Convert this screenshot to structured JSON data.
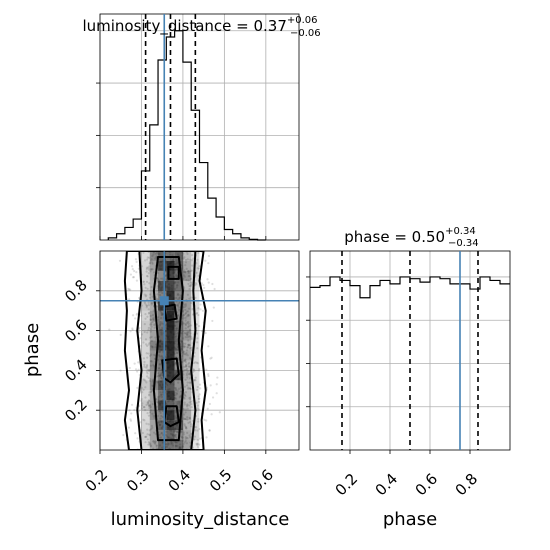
{
  "chart_data": [
    {
      "type": "histogram",
      "panel": "luminosity_distance-marginal",
      "title": {
        "main": "luminosity_distance = 0.37",
        "sup": "+0.06",
        "sub": "−0.06"
      },
      "xlim": [
        0.2,
        0.68
      ],
      "bins": [
        0.22,
        0.24,
        0.26,
        0.28,
        0.3,
        0.32,
        0.34,
        0.36,
        0.38,
        0.4,
        0.42,
        0.44,
        0.46,
        0.48,
        0.5,
        0.52,
        0.54,
        0.56,
        0.58
      ],
      "counts": [
        0.01,
        0.03,
        0.06,
        0.1,
        0.33,
        0.55,
        0.86,
        0.97,
        1.0,
        0.85,
        0.62,
        0.37,
        0.2,
        0.11,
        0.05,
        0.03,
        0.01,
        0.003
      ],
      "quantiles": [
        0.31,
        0.37,
        0.43
      ],
      "truth": 0.355
    },
    {
      "type": "histogram",
      "panel": "phase-marginal",
      "title": {
        "main": "phase = 0.50",
        "sup": "+0.34",
        "sub": "−0.34"
      },
      "xlim": [
        0.0,
        1.0
      ],
      "bins": [
        0.0,
        0.05,
        0.1,
        0.15,
        0.2,
        0.25,
        0.3,
        0.35,
        0.4,
        0.45,
        0.5,
        0.55,
        0.6,
        0.65,
        0.7,
        0.75,
        0.8,
        0.85,
        0.9,
        0.95,
        1.0
      ],
      "counts": [
        0.94,
        0.95,
        1.0,
        0.98,
        0.95,
        0.88,
        0.95,
        0.98,
        0.96,
        1.0,
        0.99,
        0.97,
        1.0,
        0.99,
        0.96,
        0.96,
        0.93,
        1.0,
        0.98,
        0.96
      ],
      "ylim": [
        0,
        1.15
      ],
      "quantiles": [
        0.16,
        0.5,
        0.84
      ],
      "truth": 0.75,
      "xticks": [
        0.2,
        0.4,
        0.6,
        0.8
      ],
      "xlabel": "phase"
    },
    {
      "type": "2d-histogram-contour",
      "panel": "luminosity_distance-vs-phase",
      "xlabel": "luminosity_distance",
      "ylabel": "phase",
      "xlim": [
        0.2,
        0.68
      ],
      "ylim": [
        0.0,
        1.0
      ],
      "xticks": [
        0.2,
        0.3,
        0.4,
        0.5,
        0.6
      ],
      "yticks": [
        0.2,
        0.4,
        0.6,
        0.8
      ],
      "truth": {
        "x": 0.355,
        "y": 0.75
      },
      "contour_levels": [
        [
          [
            0.27,
            0.0
          ],
          [
            0.26,
            0.15
          ],
          [
            0.27,
            0.3
          ],
          [
            0.26,
            0.5
          ],
          [
            0.265,
            0.7
          ],
          [
            0.26,
            0.85
          ],
          [
            0.265,
            1.0
          ],
          [
            0.45,
            1.0
          ],
          [
            0.44,
            0.85
          ],
          [
            0.455,
            0.7
          ],
          [
            0.445,
            0.5
          ],
          [
            0.455,
            0.3
          ],
          [
            0.445,
            0.15
          ],
          [
            0.45,
            0.0
          ]
        ],
        [
          [
            0.3,
            0.0
          ],
          [
            0.29,
            0.2
          ],
          [
            0.3,
            0.4
          ],
          [
            0.29,
            0.6
          ],
          [
            0.3,
            0.8
          ],
          [
            0.295,
            1.0
          ],
          [
            0.43,
            1.0
          ],
          [
            0.425,
            0.8
          ],
          [
            0.43,
            0.6
          ],
          [
            0.42,
            0.4
          ],
          [
            0.43,
            0.2
          ],
          [
            0.42,
            0.0
          ]
        ],
        [
          [
            0.34,
            0.05
          ],
          [
            0.33,
            0.3
          ],
          [
            0.34,
            0.55
          ],
          [
            0.33,
            0.8
          ],
          [
            0.34,
            0.97
          ],
          [
            0.39,
            0.97
          ],
          [
            0.4,
            0.8
          ],
          [
            0.39,
            0.55
          ],
          [
            0.4,
            0.3
          ],
          [
            0.39,
            0.05
          ]
        ],
        [
          [
            0.355,
            0.14
          ],
          [
            0.36,
            0.22
          ],
          [
            0.385,
            0.22
          ],
          [
            0.39,
            0.14
          ],
          [
            0.37,
            0.12
          ]
        ],
        [
          [
            0.355,
            0.36
          ],
          [
            0.35,
            0.45
          ],
          [
            0.385,
            0.46
          ],
          [
            0.39,
            0.38
          ],
          [
            0.37,
            0.34
          ]
        ],
        [
          [
            0.36,
            0.65
          ],
          [
            0.355,
            0.72
          ],
          [
            0.38,
            0.73
          ],
          [
            0.385,
            0.66
          ]
        ],
        [
          [
            0.365,
            0.86
          ],
          [
            0.365,
            0.92
          ],
          [
            0.39,
            0.92
          ],
          [
            0.39,
            0.86
          ]
        ]
      ],
      "density_columns": [
        {
          "x": [
            0.3,
            0.32
          ],
          "level": 0.18
        },
        {
          "x": [
            0.32,
            0.34
          ],
          "level": 0.4
        },
        {
          "x": [
            0.34,
            0.36
          ],
          "level": 0.6
        },
        {
          "x": [
            0.36,
            0.38
          ],
          "level": 0.72
        },
        {
          "x": [
            0.38,
            0.4
          ],
          "level": 0.55
        },
        {
          "x": [
            0.4,
            0.42
          ],
          "level": 0.35
        },
        {
          "x": [
            0.42,
            0.44
          ],
          "level": 0.15
        }
      ]
    }
  ]
}
